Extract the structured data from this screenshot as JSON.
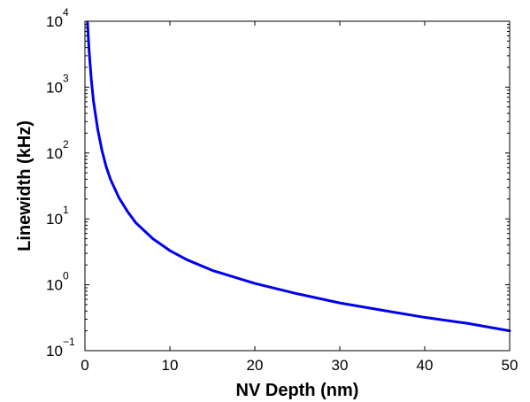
{
  "chart_data": {
    "type": "line",
    "title": "",
    "xlabel": "NV Depth (nm)",
    "ylabel": "Linewidth (kHz)",
    "xlim": [
      0,
      50
    ],
    "ylim": [
      0.1,
      10000
    ],
    "yscale": "log",
    "grid": false,
    "legend": "none",
    "x_ticks": [
      0,
      10,
      20,
      30,
      40,
      50
    ],
    "y_ticks": [
      {
        "value": 0.1,
        "base": "10",
        "exp": "−1"
      },
      {
        "value": 1,
        "base": "10",
        "exp": "0"
      },
      {
        "value": 10,
        "base": "10",
        "exp": "1"
      },
      {
        "value": 100,
        "base": "10",
        "exp": "2"
      },
      {
        "value": 1000,
        "base": "10",
        "exp": "3"
      },
      {
        "value": 10000,
        "base": "10",
        "exp": "4"
      }
    ],
    "series": [
      {
        "color": "#0000ee",
        "x": [
          0.3,
          0.5,
          0.75,
          1,
          1.5,
          2,
          2.5,
          3,
          4,
          5,
          6,
          8,
          10,
          12,
          15,
          20,
          25,
          30,
          35,
          40,
          45,
          50
        ],
        "y": [
          9500,
          3400,
          1300,
          620,
          230,
          110,
          62,
          40,
          21,
          13,
          8.7,
          5.0,
          3.3,
          2.4,
          1.65,
          1.05,
          0.73,
          0.53,
          0.41,
          0.32,
          0.26,
          0.2
        ]
      }
    ]
  }
}
